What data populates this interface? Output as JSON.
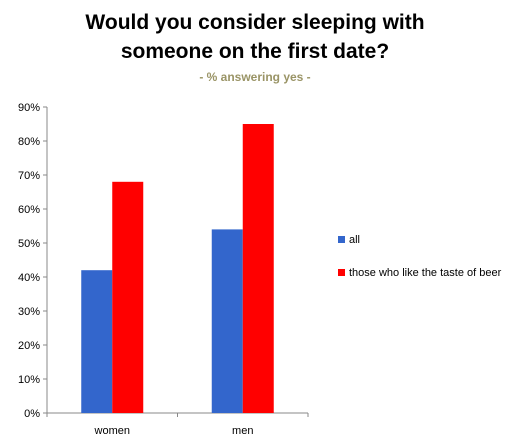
{
  "chart_data": {
    "type": "bar",
    "title_lines": [
      "Would you consider sleeping with",
      "someone on the first date?"
    ],
    "subtitle": "- % answering yes -",
    "categories": [
      "women",
      "men"
    ],
    "series": [
      {
        "name": "all",
        "values": [
          42,
          54
        ],
        "color": "#3366cc"
      },
      {
        "name": "those who like the taste of beer",
        "values": [
          68,
          85
        ],
        "color": "#ff0000"
      }
    ],
    "y_ticks": [
      "0%",
      "10%",
      "20%",
      "30%",
      "40%",
      "50%",
      "60%",
      "70%",
      "80%",
      "90%"
    ],
    "ylim": [
      0,
      90
    ],
    "grid": false,
    "legend_position": "right"
  }
}
